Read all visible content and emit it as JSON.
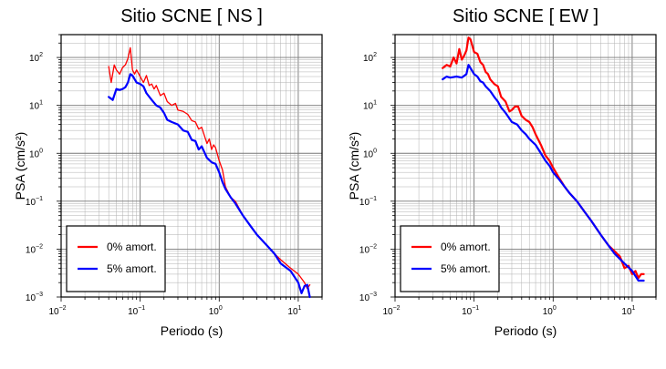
{
  "chart_data": [
    {
      "type": "line",
      "title": "Sitio SCNE [ NS ]",
      "xlabel": "Periodo (s)",
      "ylabel": "PSA (cm/s²)",
      "x_scale": "log",
      "y_scale": "log",
      "xlim": [
        0.01,
        20
      ],
      "ylim": [
        0.001,
        300
      ],
      "grid": true,
      "legend_position": "bottom-left",
      "x_ticks": [
        {
          "value": 0.01,
          "base": "10",
          "exp": "−2"
        },
        {
          "value": 0.1,
          "base": "10",
          "exp": "−1"
        },
        {
          "value": 1,
          "base": "10",
          "exp": "0"
        },
        {
          "value": 10,
          "base": "10",
          "exp": "1"
        }
      ],
      "y_ticks": [
        {
          "value": 0.001,
          "base": "10",
          "exp": "−3"
        },
        {
          "value": 0.01,
          "base": "10",
          "exp": "−2"
        },
        {
          "value": 0.1,
          "base": "10",
          "exp": "−1"
        },
        {
          "value": 1,
          "base": "10",
          "exp": "0"
        },
        {
          "value": 10,
          "base": "10",
          "exp": "1"
        },
        {
          "value": 100,
          "base": "10",
          "exp": "2"
        }
      ],
      "series": [
        {
          "name": "0% amort.",
          "color": "#ff0000",
          "stroke_style": "thin",
          "points": [
            [
              0.04,
              65
            ],
            [
              0.043,
              30
            ],
            [
              0.047,
              70
            ],
            [
              0.05,
              55
            ],
            [
              0.055,
              45
            ],
            [
              0.06,
              62
            ],
            [
              0.065,
              70
            ],
            [
              0.07,
              95
            ],
            [
              0.075,
              160
            ],
            [
              0.08,
              55
            ],
            [
              0.085,
              45
            ],
            [
              0.09,
              55
            ],
            [
              0.1,
              40
            ],
            [
              0.11,
              30
            ],
            [
              0.12,
              42
            ],
            [
              0.13,
              26
            ],
            [
              0.14,
              28
            ],
            [
              0.15,
              22
            ],
            [
              0.16,
              26
            ],
            [
              0.18,
              16
            ],
            [
              0.2,
              18
            ],
            [
              0.22,
              12
            ],
            [
              0.25,
              10
            ],
            [
              0.28,
              11
            ],
            [
              0.3,
              8
            ],
            [
              0.35,
              7.5
            ],
            [
              0.4,
              6.5
            ],
            [
              0.45,
              4.8
            ],
            [
              0.5,
              4.5
            ],
            [
              0.55,
              3.2
            ],
            [
              0.6,
              3.5
            ],
            [
              0.7,
              1.6
            ],
            [
              0.75,
              2
            ],
            [
              0.8,
              1.2
            ],
            [
              0.85,
              1.5
            ],
            [
              0.9,
              1.3
            ],
            [
              1.0,
              0.7
            ],
            [
              1.1,
              0.45
            ],
            [
              1.2,
              0.2
            ],
            [
              1.4,
              0.12
            ],
            [
              1.6,
              0.1
            ],
            [
              2.0,
              0.05
            ],
            [
              2.5,
              0.03
            ],
            [
              3.0,
              0.02
            ],
            [
              4.0,
              0.012
            ],
            [
              5.0,
              0.008
            ],
            [
              6.0,
              0.006
            ],
            [
              8.0,
              0.004
            ],
            [
              10,
              0.003
            ],
            [
              12,
              0.002
            ],
            [
              13,
              0.0015
            ],
            [
              14,
              0.0018
            ]
          ]
        },
        {
          "name": "5% amort.",
          "color": "#0000ff",
          "stroke_style": "thick",
          "points": [
            [
              0.04,
              15
            ],
            [
              0.045,
              13
            ],
            [
              0.05,
              22
            ],
            [
              0.055,
              21
            ],
            [
              0.06,
              22
            ],
            [
              0.065,
              24
            ],
            [
              0.07,
              30
            ],
            [
              0.075,
              45
            ],
            [
              0.08,
              42
            ],
            [
              0.09,
              30
            ],
            [
              0.1,
              28
            ],
            [
              0.11,
              25
            ],
            [
              0.12,
              18
            ],
            [
              0.14,
              13
            ],
            [
              0.16,
              10
            ],
            [
              0.18,
              9
            ],
            [
              0.2,
              7
            ],
            [
              0.22,
              5
            ],
            [
              0.25,
              4.5
            ],
            [
              0.3,
              4
            ],
            [
              0.35,
              3
            ],
            [
              0.4,
              2.8
            ],
            [
              0.45,
              1.9
            ],
            [
              0.5,
              1.8
            ],
            [
              0.55,
              1.2
            ],
            [
              0.6,
              1.4
            ],
            [
              0.7,
              0.8
            ],
            [
              0.8,
              0.65
            ],
            [
              0.9,
              0.6
            ],
            [
              1.0,
              0.4
            ],
            [
              1.1,
              0.25
            ],
            [
              1.2,
              0.18
            ],
            [
              1.4,
              0.12
            ],
            [
              1.6,
              0.09
            ],
            [
              2.0,
              0.05
            ],
            [
              2.5,
              0.03
            ],
            [
              3.0,
              0.02
            ],
            [
              4.0,
              0.012
            ],
            [
              5.0,
              0.008
            ],
            [
              6.0,
              0.005
            ],
            [
              8.0,
              0.0035
            ],
            [
              10,
              0.002
            ],
            [
              11,
              0.0012
            ],
            [
              12,
              0.0017
            ],
            [
              13,
              0.0018
            ],
            [
              14,
              0.001
            ]
          ]
        }
      ]
    },
    {
      "type": "line",
      "title": "Sitio SCNE [ EW ]",
      "xlabel": "Periodo (s)",
      "ylabel": "PSA (cm/s²)",
      "x_scale": "log",
      "y_scale": "log",
      "xlim": [
        0.01,
        20
      ],
      "ylim": [
        0.001,
        300
      ],
      "grid": true,
      "legend_position": "bottom-left",
      "x_ticks": [
        {
          "value": 0.01,
          "base": "10",
          "exp": "−2"
        },
        {
          "value": 0.1,
          "base": "10",
          "exp": "−1"
        },
        {
          "value": 1,
          "base": "10",
          "exp": "0"
        },
        {
          "value": 10,
          "base": "10",
          "exp": "1"
        }
      ],
      "y_ticks": [
        {
          "value": 0.001,
          "base": "10",
          "exp": "−3"
        },
        {
          "value": 0.01,
          "base": "10",
          "exp": "−2"
        },
        {
          "value": 0.1,
          "base": "10",
          "exp": "−1"
        },
        {
          "value": 1,
          "base": "10",
          "exp": "0"
        },
        {
          "value": 10,
          "base": "10",
          "exp": "1"
        },
        {
          "value": 100,
          "base": "10",
          "exp": "2"
        }
      ],
      "series": [
        {
          "name": "0% amort.",
          "color": "#ff0000",
          "stroke_style": "thick",
          "points": [
            [
              0.04,
              60
            ],
            [
              0.045,
              70
            ],
            [
              0.05,
              65
            ],
            [
              0.055,
              100
            ],
            [
              0.06,
              75
            ],
            [
              0.065,
              150
            ],
            [
              0.07,
              90
            ],
            [
              0.075,
              110
            ],
            [
              0.08,
              140
            ],
            [
              0.085,
              260
            ],
            [
              0.09,
              240
            ],
            [
              0.1,
              130
            ],
            [
              0.11,
              120
            ],
            [
              0.12,
              80
            ],
            [
              0.13,
              70
            ],
            [
              0.14,
              50
            ],
            [
              0.15,
              45
            ],
            [
              0.16,
              35
            ],
            [
              0.18,
              28
            ],
            [
              0.2,
              25
            ],
            [
              0.22,
              15
            ],
            [
              0.25,
              12
            ],
            [
              0.28,
              7.5
            ],
            [
              0.3,
              8
            ],
            [
              0.33,
              9.5
            ],
            [
              0.36,
              9.5
            ],
            [
              0.4,
              6
            ],
            [
              0.45,
              5
            ],
            [
              0.5,
              4.5
            ],
            [
              0.55,
              3.5
            ],
            [
              0.6,
              2.5
            ],
            [
              0.7,
              1.5
            ],
            [
              0.8,
              0.9
            ],
            [
              0.9,
              0.7
            ],
            [
              1.0,
              0.5
            ],
            [
              1.2,
              0.3
            ],
            [
              1.4,
              0.2
            ],
            [
              1.6,
              0.15
            ],
            [
              2.0,
              0.1
            ],
            [
              2.5,
              0.06
            ],
            [
              3.0,
              0.04
            ],
            [
              4.0,
              0.02
            ],
            [
              5.0,
              0.012
            ],
            [
              6.0,
              0.009
            ],
            [
              7.0,
              0.007
            ],
            [
              8.0,
              0.004
            ],
            [
              9.0,
              0.0045
            ],
            [
              10,
              0.003
            ],
            [
              11,
              0.0035
            ],
            [
              12,
              0.0025
            ],
            [
              13,
              0.003
            ],
            [
              14,
              0.003
            ]
          ]
        },
        {
          "name": "5% amort.",
          "color": "#0000ff",
          "stroke_style": "thick",
          "points": [
            [
              0.04,
              35
            ],
            [
              0.045,
              40
            ],
            [
              0.05,
              38
            ],
            [
              0.06,
              40
            ],
            [
              0.07,
              38
            ],
            [
              0.08,
              45
            ],
            [
              0.085,
              70
            ],
            [
              0.09,
              60
            ],
            [
              0.1,
              45
            ],
            [
              0.11,
              40
            ],
            [
              0.12,
              32
            ],
            [
              0.13,
              30
            ],
            [
              0.14,
              25
            ],
            [
              0.16,
              20
            ],
            [
              0.18,
              15
            ],
            [
              0.2,
              12
            ],
            [
              0.22,
              9
            ],
            [
              0.25,
              7
            ],
            [
              0.3,
              4.5
            ],
            [
              0.35,
              4
            ],
            [
              0.4,
              3
            ],
            [
              0.45,
              2.5
            ],
            [
              0.5,
              2
            ],
            [
              0.6,
              1.5
            ],
            [
              0.7,
              1
            ],
            [
              0.8,
              0.7
            ],
            [
              0.9,
              0.55
            ],
            [
              1.0,
              0.4
            ],
            [
              1.2,
              0.28
            ],
            [
              1.4,
              0.2
            ],
            [
              1.6,
              0.15
            ],
            [
              2.0,
              0.1
            ],
            [
              2.5,
              0.06
            ],
            [
              3.0,
              0.04
            ],
            [
              4.0,
              0.02
            ],
            [
              5.0,
              0.012
            ],
            [
              6.0,
              0.008
            ],
            [
              8.0,
              0.005
            ],
            [
              10,
              0.0035
            ],
            [
              12,
              0.0022
            ],
            [
              14,
              0.0022
            ]
          ]
        }
      ]
    }
  ]
}
